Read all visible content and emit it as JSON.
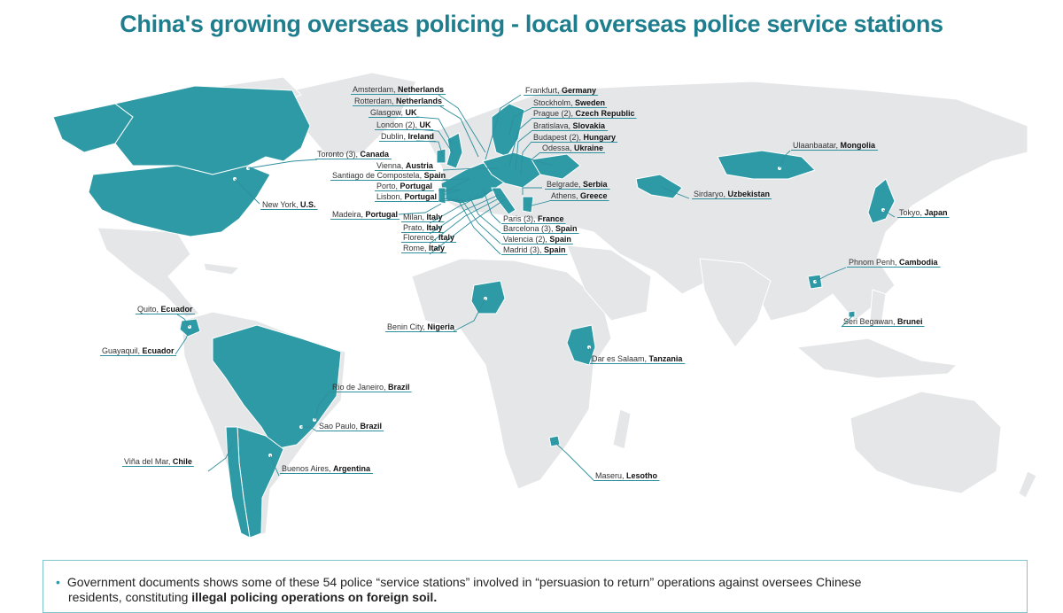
{
  "title": "China's growing overseas policing - local overseas police service stations",
  "colors": {
    "accent": "#2e9aa6",
    "land": "#e4e6e8",
    "title": "#1f7e8e"
  },
  "stations": [
    {
      "city": "Amsterdam,",
      "country": "Netherlands"
    },
    {
      "city": "Rotterdam,",
      "country": "Netherlands"
    },
    {
      "city": "Glasgow,",
      "country": "UK"
    },
    {
      "city": "London (2),",
      "country": "UK"
    },
    {
      "city": "Dublin,",
      "country": "Ireland"
    },
    {
      "city": "Toronto (3),",
      "country": "Canada"
    },
    {
      "city": "Vienna,",
      "country": "Austria"
    },
    {
      "city": "Santiago de Compostela,",
      "country": "Spain"
    },
    {
      "city": "Porto,",
      "country": "Portugal"
    },
    {
      "city": "Lisbon,",
      "country": "Portugal"
    },
    {
      "city": "New York,",
      "country": "U.S."
    },
    {
      "city": "Madeira,",
      "country": "Portugal"
    },
    {
      "city": "Milan,",
      "country": "Italy"
    },
    {
      "city": "Prato,",
      "country": "Italy"
    },
    {
      "city": "Florence,",
      "country": "Italy"
    },
    {
      "city": "Rome,",
      "country": "Italy"
    },
    {
      "city": "Frankfurt,",
      "country": "Germany"
    },
    {
      "city": "Stockholm,",
      "country": "Sweden"
    },
    {
      "city": "Prague (2),",
      "country": "Czech Republic"
    },
    {
      "city": "Bratislava,",
      "country": "Slovakia"
    },
    {
      "city": "Budapest (2),",
      "country": "Hungary"
    },
    {
      "city": "Odessa,",
      "country": "Ukraine"
    },
    {
      "city": "Belgrade,",
      "country": "Serbia"
    },
    {
      "city": "Athens,",
      "country": "Greece"
    },
    {
      "city": "Paris (3),",
      "country": "France"
    },
    {
      "city": "Barcelona (3),",
      "country": "Spain"
    },
    {
      "city": "Valencia (2),",
      "country": "Spain"
    },
    {
      "city": "Madrid (3),",
      "country": "Spain"
    },
    {
      "city": "Ulaanbaatar,",
      "country": "Mongolia"
    },
    {
      "city": "Sirdaryo,",
      "country": "Uzbekistan"
    },
    {
      "city": "Tokyo,",
      "country": "Japan"
    },
    {
      "city": "Phnom Penh,",
      "country": "Cambodia"
    },
    {
      "city": "Seri Begawan,",
      "country": "Brunei"
    },
    {
      "city": "Quito,",
      "country": "Ecuador"
    },
    {
      "city": "Guayaquil,",
      "country": "Ecuador"
    },
    {
      "city": "Benin City,",
      "country": "Nigeria"
    },
    {
      "city": "Dar es Salaam,",
      "country": "Tanzania"
    },
    {
      "city": "Rio de Janeiro,",
      "country": "Brazil"
    },
    {
      "city": "Sao Paulo,",
      "country": "Brazil"
    },
    {
      "city": "Viña del Mar,",
      "country": "Chile"
    },
    {
      "city": "Buenos Aires,",
      "country": "Argentina"
    },
    {
      "city": "Maseru,",
      "country": "Lesotho"
    }
  ],
  "note": {
    "line1": "Government documents shows some of these 54 police “service stations” involved in “persuasion to return” operations against oversees Chinese",
    "line2_plain": "residents, constituting ",
    "line2_bold": "illegal policing operations on foreign soil."
  }
}
